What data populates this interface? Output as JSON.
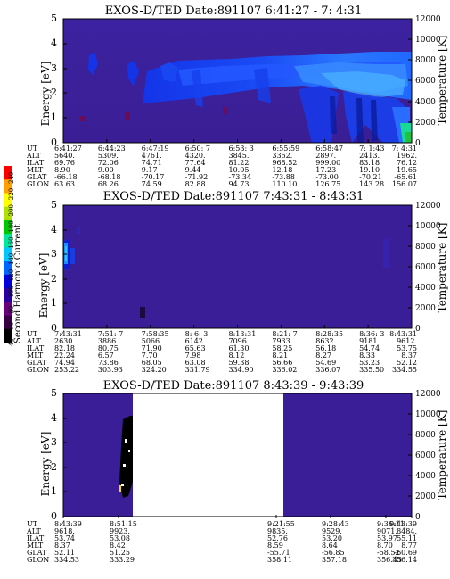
{
  "chart_data": [
    {
      "type": "heatmap",
      "title": "EXOS-D/TED   Date:891107  6:41:27 - 7: 4:31",
      "ylabel": "Energy [eV]",
      "ylabel_right": "Temperature [K]",
      "ylim": [
        0,
        5
      ],
      "yticks": [
        "0",
        "1",
        "2",
        "3",
        "4",
        "5"
      ],
      "ylim_right": [
        0,
        12000
      ],
      "yticks_right": [
        "0",
        "2000",
        "4000",
        "6000",
        "8000",
        "10000",
        "12000"
      ],
      "row_labels": [
        "UT",
        "ALT",
        "ILAT",
        "MLT",
        "GLAT",
        "GLON"
      ],
      "columns": [
        [
          "6:41:27",
          "5640.",
          "69.76",
          "8.90",
          "-66.18",
          "63.63"
        ],
        [
          "6:44:23",
          "5309.",
          "72.06",
          "9.00",
          "-68.18",
          "68.26"
        ],
        [
          "6:47:19",
          "4761.",
          "74.71",
          "9.17",
          "-70.17",
          "74.59"
        ],
        [
          "6:50: 7",
          "4320.",
          "77.64",
          "9.44",
          "-71.92",
          "82.88"
        ],
        [
          "6:53: 3",
          "3845.",
          "81.22",
          "10.05",
          "-73.34",
          "94.73"
        ],
        [
          "6:55:59",
          "3362.",
          "968.52",
          "12.18",
          "-73.88",
          "110.10"
        ],
        [
          "6:58:47",
          "2897.",
          "999.00",
          "17.23",
          "-73.00",
          "126.75"
        ],
        [
          "7: 1:43",
          "2413.",
          "83.18",
          "19.10",
          "-70.21",
          "143.28"
        ],
        [
          "7: 4:31",
          "1962.",
          "76.12",
          "19.65",
          "-65.61",
          "156.07"
        ]
      ]
    },
    {
      "type": "heatmap",
      "title": "EXOS-D/TED   Date:891107  7:43:31 - 8:43:31",
      "ylabel": "Energy [eV]",
      "ylabel_right": "Temperature [K]",
      "ylim": [
        0,
        5
      ],
      "yticks": [
        "0",
        "1",
        "2",
        "3",
        "4",
        "5"
      ],
      "ylim_right": [
        0,
        12000
      ],
      "yticks_right": [
        "0",
        "2000",
        "4000",
        "6000",
        "8000",
        "10000",
        "12000"
      ],
      "row_labels": [
        "UT",
        "ALT",
        "ILAT",
        "MLT",
        "GLAT",
        "GLON"
      ],
      "columns": [
        [
          "7:43:31",
          "2630.",
          "82.18",
          "22.24",
          "74.94",
          "253.22"
        ],
        [
          "7:51: 7",
          "3886.",
          "80.75",
          "6.57",
          "73.86",
          "303.93"
        ],
        [
          "7:58:35",
          "5066.",
          "71.90",
          "7.70",
          "68.05",
          "324.20"
        ],
        [
          "8: 6: 3",
          "6142.",
          "65.63",
          "7.98",
          "63.08",
          "331.79"
        ],
        [
          "8:13:31",
          "7096.",
          "61.30",
          "8.12",
          "59.38",
          "334.90"
        ],
        [
          "8:21: 7",
          "7933.",
          "58.25",
          "8.21",
          "56.66",
          "336.02"
        ],
        [
          "8:28:35",
          "8632.",
          "56.18",
          "8.27",
          "54.69",
          "336.07"
        ],
        [
          "8:36: 3",
          "9181.",
          "54.74",
          "8.33",
          "53.23",
          "335.50"
        ],
        [
          "8:43:31",
          "9612.",
          "53.75",
          "8.37",
          "52.12",
          "334.55"
        ]
      ]
    },
    {
      "type": "heatmap",
      "title": "EXOS-D/TED   Date:891107  8:43:39 - 9:43:39",
      "ylabel": "Energy [eV]",
      "ylabel_right": "Temperature [K]",
      "ylim": [
        0,
        5
      ],
      "yticks": [
        "0",
        "1",
        "2",
        "3",
        "4",
        "5"
      ],
      "ylim_right": [
        0,
        12000
      ],
      "yticks_right": [
        "0",
        "2000",
        "4000",
        "6000",
        "8000",
        "10000",
        "12000"
      ],
      "row_labels": [
        "UT",
        "ALT",
        "ILAT",
        "MLT",
        "GLAT",
        "GLON"
      ],
      "columns": [
        [
          "8:43:39",
          "9618.",
          "53.74",
          "8.37",
          "52.11",
          "334.53"
        ],
        [
          "8:51:15",
          "9923.",
          "53.08",
          "8.42",
          "51.25",
          "333.29"
        ],
        [
          "9:21:55",
          "9835.",
          "52.76",
          "8.59",
          "-55.71",
          "358.11"
        ],
        [
          "9:28:43",
          "9529.",
          "53.20",
          "8.64",
          "-56.85",
          "357.18"
        ],
        [
          "9:36:11",
          "9071.",
          "53.97",
          "8.70",
          "-58.52",
          "356.43"
        ],
        [
          "9:43:39",
          "8484.",
          "55.11",
          "8.77",
          "-60.69",
          "356.14"
        ]
      ],
      "data_gap_ut": [
        "8:51:15",
        "9:21:55"
      ]
    }
  ],
  "colorbar": {
    "label": "Second Harmonic Current",
    "ticks": [
      "40",
      "60",
      "80",
      "100",
      "120",
      "140",
      "160",
      "180",
      "200",
      "220",
      "240"
    ],
    "colors": [
      "#000000",
      "#3a0046",
      "#6a0080",
      "#2a00a0",
      "#0000e0",
      "#0066ff",
      "#00c8ff",
      "#00e8a0",
      "#00c800",
      "#b0e000",
      "#ffff00",
      "#ffa000",
      "#ff0000"
    ]
  }
}
